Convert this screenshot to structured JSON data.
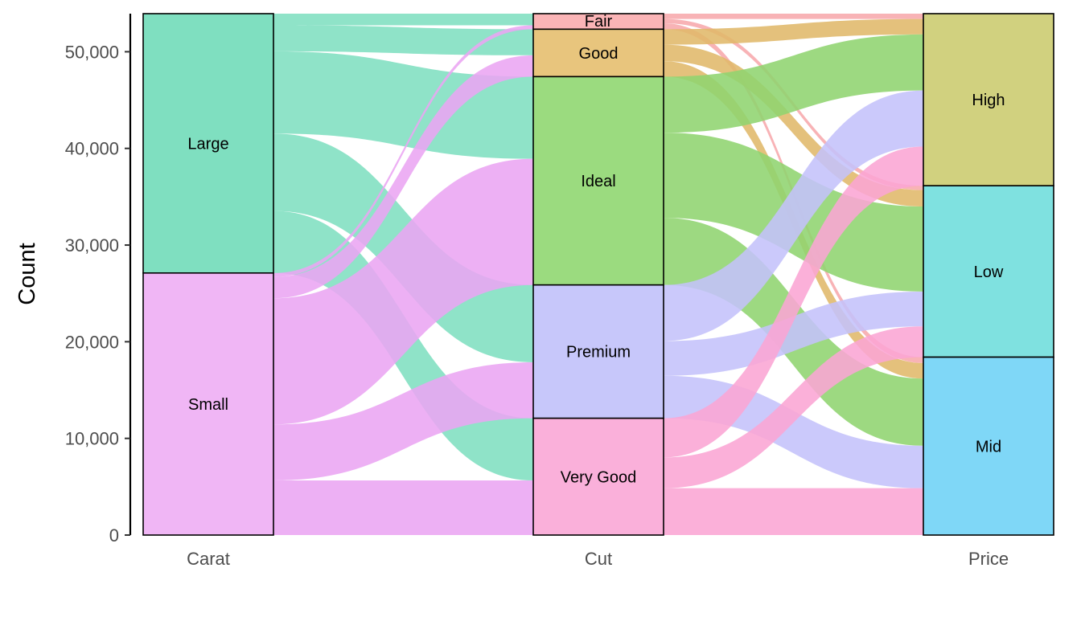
{
  "chart_data": {
    "type": "alluvial",
    "ylabel": "Count",
    "ylim": [
      0,
      53940
    ],
    "y_ticks": [
      0,
      10000,
      20000,
      30000,
      40000,
      50000
    ],
    "y_tick_labels": [
      "0",
      "10,000",
      "20,000",
      "30,000",
      "40,000",
      "50,000"
    ],
    "axes": [
      {
        "name": "Carat",
        "strata": [
          {
            "label": "Large",
            "value": 26830
          },
          {
            "label": "Small",
            "value": 27110
          }
        ]
      },
      {
        "name": "Cut",
        "strata": [
          {
            "label": "Fair",
            "value": 1610
          },
          {
            "label": "Good",
            "value": 4906
          },
          {
            "label": "Ideal",
            "value": 21551
          },
          {
            "label": "Premium",
            "value": 13791
          },
          {
            "label": "Very Good",
            "value": 12082
          }
        ]
      },
      {
        "name": "Price",
        "strata": [
          {
            "label": "High",
            "value": 17803
          },
          {
            "label": "Low",
            "value": 17732
          },
          {
            "label": "Mid",
            "value": 18405
          }
        ]
      }
    ],
    "flows_carat_cut": [
      {
        "from": "Large",
        "to": "Fair",
        "value": 1200
      },
      {
        "from": "Large",
        "to": "Good",
        "value": 2700
      },
      {
        "from": "Large",
        "to": "Ideal",
        "value": 8500
      },
      {
        "from": "Large",
        "to": "Premium",
        "value": 8000
      },
      {
        "from": "Large",
        "to": "Very Good",
        "value": 6430
      },
      {
        "from": "Small",
        "to": "Fair",
        "value": 410
      },
      {
        "from": "Small",
        "to": "Good",
        "value": 2206
      },
      {
        "from": "Small",
        "to": "Ideal",
        "value": 13051
      },
      {
        "from": "Small",
        "to": "Premium",
        "value": 5791
      },
      {
        "from": "Small",
        "to": "Very Good",
        "value": 5652
      }
    ],
    "flows_cut_price": [
      {
        "from": "Fair",
        "to": "High",
        "value": 550
      },
      {
        "from": "Fair",
        "to": "Low",
        "value": 450
      },
      {
        "from": "Fair",
        "to": "Mid",
        "value": 610
      },
      {
        "from": "Good",
        "to": "High",
        "value": 1600
      },
      {
        "from": "Good",
        "to": "Low",
        "value": 1700
      },
      {
        "from": "Good",
        "to": "Mid",
        "value": 1606
      },
      {
        "from": "Ideal",
        "to": "High",
        "value": 5800
      },
      {
        "from": "Ideal",
        "to": "Low",
        "value": 8800
      },
      {
        "from": "Ideal",
        "to": "Mid",
        "value": 6951
      },
      {
        "from": "Premium",
        "to": "High",
        "value": 5800
      },
      {
        "from": "Premium",
        "to": "Low",
        "value": 3600
      },
      {
        "from": "Premium",
        "to": "Mid",
        "value": 4391
      },
      {
        "from": "Very Good",
        "to": "High",
        "value": 4053
      },
      {
        "from": "Very Good",
        "to": "Low",
        "value": 3182
      },
      {
        "from": "Very Good",
        "to": "Mid",
        "value": 4847
      }
    ],
    "colors": {
      "Large": "#7FDFC0",
      "Small": "#F0B6F5",
      "Fair": "#FAB4B6",
      "Good": "#E8C57D",
      "Ideal": "#9BDB7F",
      "Premium": "#C7C7FA",
      "Very Good": "#FAB0DA",
      "High": "#D1D17F",
      "Low": "#7FE1E0",
      "Mid": "#7FD7F7"
    },
    "flow_colors_carat_cut": {
      "Large": "#7FDFC0",
      "Small": "#EBA5F3"
    },
    "flow_colors_cut_price": {
      "Fair": "#F7A8AC",
      "Good": "#E0B86A",
      "Ideal": "#8FD46F",
      "Premium": "#C4C2FA",
      "Very Good": "#FAA5D4"
    }
  }
}
